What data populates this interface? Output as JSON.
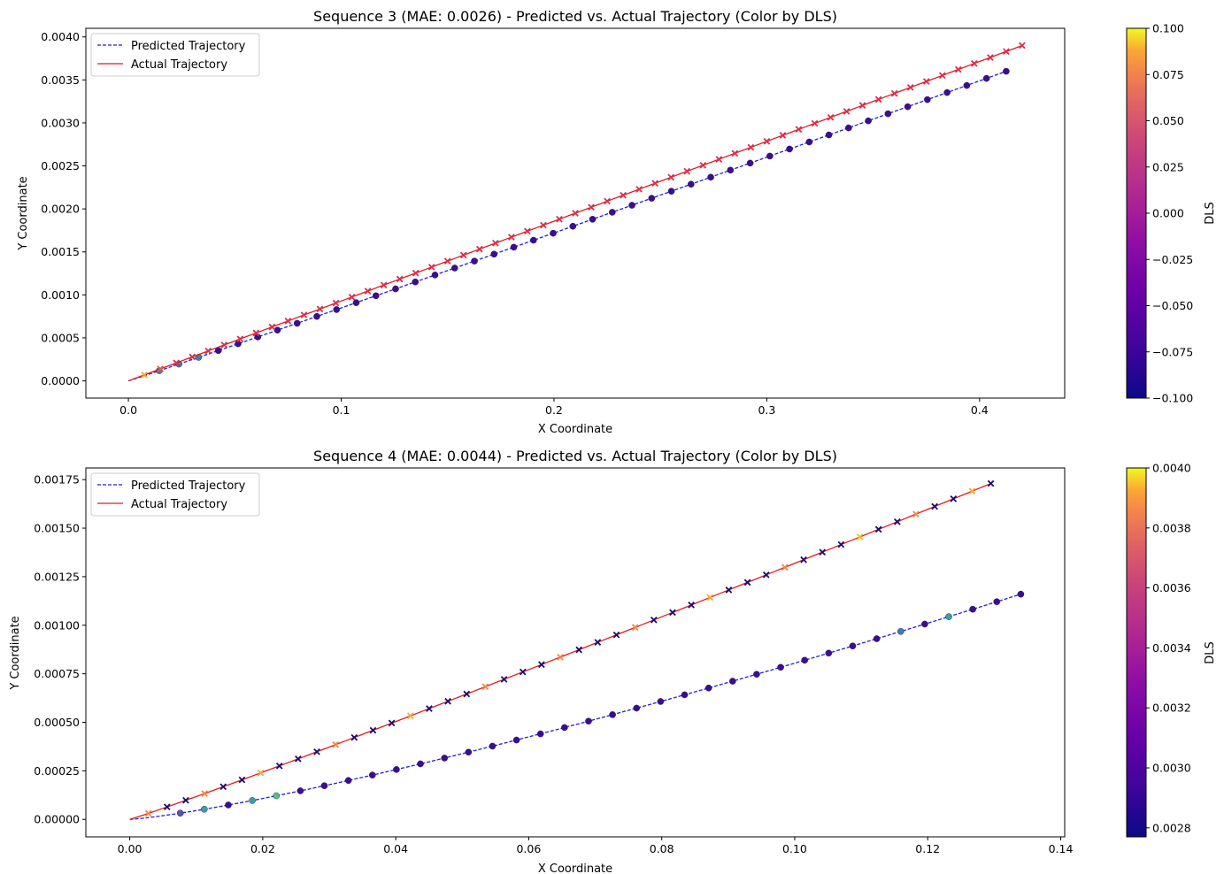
{
  "chart_data": [
    {
      "type": "scatter",
      "title": "Sequence 3 (MAE: 0.0026) - Predicted vs. Actual Trajectory (Color by DLS)",
      "xlabel": "X Coordinate",
      "ylabel": "Y Coordinate",
      "xlim": [
        -0.02,
        0.44
      ],
      "ylim": [
        -0.0002,
        0.0041
      ],
      "xticks": [
        "0.0",
        "0.1",
        "0.2",
        "0.3",
        "0.4"
      ],
      "yticks": [
        "0.0000",
        "0.0005",
        "0.0010",
        "0.0015",
        "0.0020",
        "0.0025",
        "0.0030",
        "0.0035",
        "0.0040"
      ],
      "legend_position": "upper-left",
      "grid": false,
      "series": [
        {
          "name": "Predicted Trajectory",
          "line_style": "dashed",
          "color": "#1f1fe0",
          "marker": "circle",
          "n_points": 44,
          "start": [
            0.0,
            0.0
          ],
          "first_marker": [
            0.0145,
            0.00014
          ],
          "end": [
            0.4125,
            0.0036
          ],
          "curve_exponent": 1.02
        },
        {
          "name": "Actual Trajectory",
          "line_style": "solid",
          "color": "#e31a1c",
          "marker": "x",
          "n_points": 56,
          "start": [
            0.0,
            0.0
          ],
          "first_marker": [
            0.0075,
            7e-05
          ],
          "end": [
            0.42,
            0.0039
          ],
          "curve_exponent": 1.0
        }
      ],
      "colorbar": {
        "label": "DLS",
        "min": -0.1,
        "max": 0.1,
        "ticks": [
          "−0.100",
          "−0.075",
          "−0.050",
          "−0.025",
          "0.000",
          "0.025",
          "0.050",
          "0.075",
          "0.100"
        ],
        "colormap": "plasma"
      }
    },
    {
      "type": "scatter",
      "title": "Sequence 4 (MAE: 0.0044) - Predicted vs. Actual Trajectory (Color by DLS)",
      "xlabel": "X Coordinate",
      "ylabel": "Y Coordinate",
      "xlim": [
        -0.0066,
        0.1406
      ],
      "ylim": [
        -9e-05,
        0.00181
      ],
      "xticks": [
        "0.00",
        "0.02",
        "0.04",
        "0.06",
        "0.08",
        "0.10",
        "0.12",
        "0.14"
      ],
      "yticks": [
        "0.00000",
        "0.00025",
        "0.00050",
        "0.00075",
        "0.00100",
        "0.00125",
        "0.00150",
        "0.00175"
      ],
      "legend_position": "upper-left",
      "grid": false,
      "series": [
        {
          "name": "Predicted Trajectory",
          "line_style": "dashed",
          "color": "#1f1fe0",
          "marker": "circle",
          "n_points": 36,
          "start": [
            0.0,
            0.0
          ],
          "first_marker": [
            0.0076,
            5e-05
          ],
          "end": [
            0.134,
            0.00116
          ],
          "curve_exponent": 1.25
        },
        {
          "name": "Actual Trajectory",
          "line_style": "solid",
          "color": "#e31a1c",
          "marker": "x",
          "n_points": 46,
          "start": [
            0.0,
            0.0
          ],
          "first_marker": [
            0.0028,
            4e-05
          ],
          "end": [
            0.1295,
            0.00173
          ],
          "curve_exponent": 1.05
        }
      ],
      "colorbar": {
        "label": "DLS",
        "min": 0.00277,
        "max": 0.004,
        "ticks": [
          "0.0028",
          "0.0030",
          "0.0032",
          "0.0034",
          "0.0036",
          "0.0038",
          "0.0040"
        ],
        "tick_values": [
          0.0028,
          0.003,
          0.0032,
          0.0034,
          0.0036,
          0.0038,
          0.004
        ],
        "colormap": "plasma"
      }
    }
  ]
}
